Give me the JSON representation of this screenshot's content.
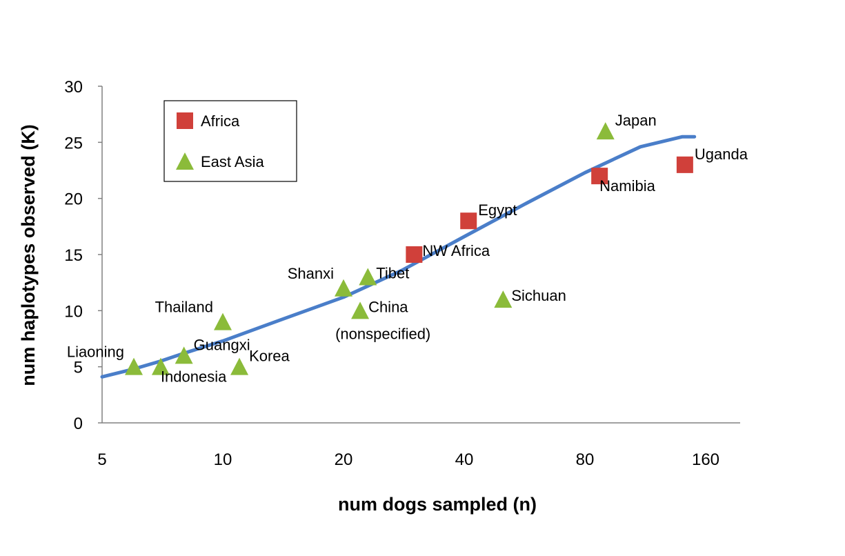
{
  "chart_data": {
    "type": "scatter",
    "title": "",
    "xlabel": "num dogs sampled (n)",
    "ylabel": "num haplotypes  observed (K)",
    "x_scale": "log2",
    "xlim": [
      5,
      190
    ],
    "ylim": [
      0,
      30
    ],
    "x_ticks": [
      {
        "value": 5,
        "label": "5"
      },
      {
        "value": 10,
        "label": "10"
      },
      {
        "value": 20,
        "label": "20"
      },
      {
        "value": 40,
        "label": "40"
      },
      {
        "value": 80,
        "label": "80"
      },
      {
        "value": 160,
        "label": "160"
      }
    ],
    "y_ticks": [
      0,
      5,
      10,
      15,
      20,
      25,
      30
    ],
    "grid": false,
    "legend": {
      "position": "top-left",
      "entries": [
        {
          "name": "Africa",
          "marker": "square",
          "color": "#d0403a"
        },
        {
          "name": "East Asia",
          "marker": "triangle",
          "color": "#8bbb3a"
        }
      ]
    },
    "series": [
      {
        "name": "Africa",
        "marker": "square",
        "color": "#d0403a",
        "points": [
          {
            "label": "NW Africa",
            "x": 30,
            "y": 15,
            "label_pos": "right"
          },
          {
            "label": "Egypt",
            "x": 41,
            "y": 18,
            "label_pos": "upper-right"
          },
          {
            "label": "Namibia",
            "x": 87,
            "y": 22,
            "label_pos": "lower-right"
          },
          {
            "label": "Uganda",
            "x": 142,
            "y": 23,
            "label_pos": "upper-right"
          }
        ]
      },
      {
        "name": "East Asia",
        "marker": "triangle",
        "color": "#8bbb3a",
        "points": [
          {
            "label": "Liaoning",
            "x": 6,
            "y": 5,
            "label_pos": "upper-left"
          },
          {
            "label": "Indonesia",
            "x": 7,
            "y": 5,
            "label_pos": "lower-right"
          },
          {
            "label": "Guangxi",
            "x": 8,
            "y": 6,
            "label_pos": "upper-right"
          },
          {
            "label": "Thailand",
            "x": 10,
            "y": 9,
            "label_pos": "upper-left"
          },
          {
            "label": "Korea",
            "x": 11,
            "y": 5,
            "label_pos": "upper-right"
          },
          {
            "label": "Shanxi",
            "x": 20,
            "y": 12,
            "label_pos": "upper-left"
          },
          {
            "label": "Tibet",
            "x": 23,
            "y": 13,
            "label_pos": "right"
          },
          {
            "label": "China",
            "label2": "(nonspecified)",
            "x": 22,
            "y": 10,
            "label_pos": "right"
          },
          {
            "label": "Sichuan",
            "x": 50,
            "y": 11,
            "label_pos": "right"
          },
          {
            "label": "Japan",
            "x": 90,
            "y": 26,
            "label_pos": "upper-right"
          }
        ]
      }
    ],
    "trend_line": {
      "color": "#4a7ec9",
      "points": [
        [
          5,
          4.1
        ],
        [
          6,
          4.8
        ],
        [
          7,
          5.5
        ],
        [
          8,
          6.2
        ],
        [
          10,
          7.3
        ],
        [
          14,
          9.2
        ],
        [
          20,
          11.2
        ],
        [
          28,
          13.6
        ],
        [
          40,
          16.6
        ],
        [
          56,
          19.4
        ],
        [
          80,
          22.3
        ],
        [
          110,
          24.6
        ],
        [
          140,
          25.5
        ],
        [
          150,
          25.5
        ]
      ]
    }
  }
}
